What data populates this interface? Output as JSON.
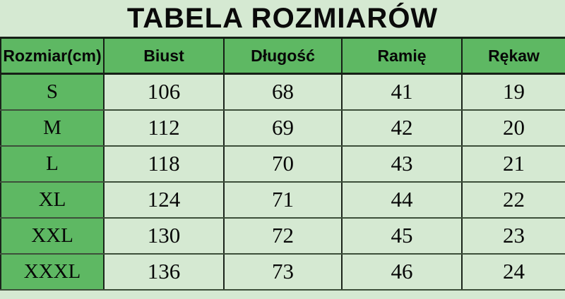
{
  "chart_data": {
    "type": "table",
    "title": "TABELA ROZMIARÓW",
    "columns": [
      "Rozmiar(cm)",
      "Biust",
      "Długość",
      "Ramię",
      "Rękaw"
    ],
    "rows": [
      [
        "S",
        "106",
        "68",
        "41",
        "19"
      ],
      [
        "M",
        "112",
        "69",
        "42",
        "20"
      ],
      [
        "L",
        "118",
        "70",
        "43",
        "21"
      ],
      [
        "XL",
        "124",
        "71",
        "44",
        "22"
      ],
      [
        "XXL",
        "130",
        "72",
        "45",
        "23"
      ],
      [
        "XXXL",
        "136",
        "73",
        "46",
        "24"
      ]
    ]
  },
  "colors": {
    "background_light_green": "#d5e9d2",
    "header_green": "#5eb863",
    "border_dark": "#161f16",
    "row_line_green": "#3d4f3a",
    "text": "#070707"
  }
}
